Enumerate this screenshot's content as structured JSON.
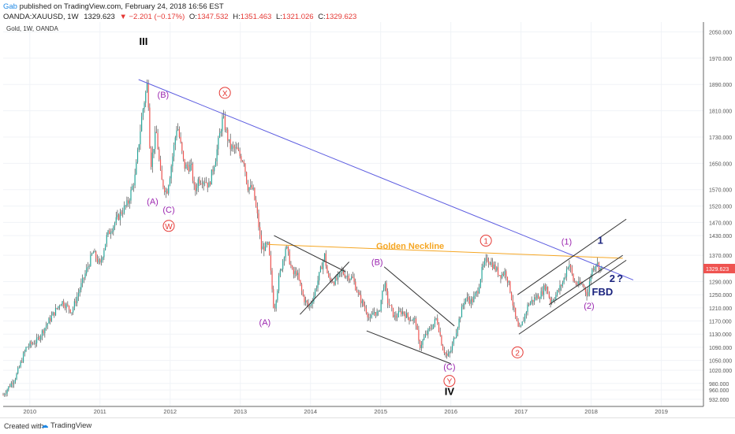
{
  "header": {
    "author": "Gab",
    "published": "published on TradingView.com, February 24, 2018 16:56 EST",
    "symbol": "OANDA:XAUUSD, 1W",
    "last": "1329.623",
    "change": "▼ −2.201 (−0.17%)",
    "o_label": "O:",
    "o": "1347.532",
    "h_label": "H:",
    "h": "1351.463",
    "l_label": "L:",
    "l": "1321.026",
    "c_label": "C:",
    "c": "1329.623"
  },
  "footer": {
    "created_with": "Created with",
    "brand": "TradingView"
  },
  "chart_data": {
    "type": "candlestick",
    "series_label": "Gold, 1W, OANDA",
    "x_ticks": [
      "2010",
      "2011",
      "2012",
      "2013",
      "2014",
      "2015",
      "2016",
      "2017",
      "2018",
      "2019"
    ],
    "y_ticks": [
      2050.0,
      1970.0,
      1890.0,
      1810.0,
      1730.0,
      1650.0,
      1570.0,
      1520.0,
      1470.0,
      1430.0,
      1370.0,
      1290.0,
      1250.0,
      1210.0,
      1170.0,
      1130.0,
      1090.0,
      1050.0,
      1020.0,
      980.0,
      960.0,
      932.0
    ],
    "y_tick_labels": [
      "2050.000",
      "1970.000",
      "1890.000",
      "1810.000",
      "1730.000",
      "1650.000",
      "1570.000",
      "1520.000",
      "1470.000",
      "1430.000",
      "1370.000",
      "1290.000",
      "1250.000",
      "1210.000",
      "1170.000",
      "1130.000",
      "1090.000",
      "1050.000",
      "1020.000",
      "980.000",
      "960.000",
      "932.000"
    ],
    "last_price_label": "1329.623",
    "last_price": 1329.623,
    "x_range": [
      2009.62,
      2019.6
    ],
    "y_range": [
      910,
      2080
    ],
    "price_path": [
      [
        2009.62,
        945
      ],
      [
        2009.8,
        1000
      ],
      [
        2009.95,
        1090
      ],
      [
        2010.1,
        1110
      ],
      [
        2010.3,
        1180
      ],
      [
        2010.45,
        1230
      ],
      [
        2010.6,
        1200
      ],
      [
        2010.75,
        1290
      ],
      [
        2010.9,
        1380
      ],
      [
        2011.0,
        1340
      ],
      [
        2011.1,
        1430
      ],
      [
        2011.3,
        1500
      ],
      [
        2011.4,
        1530
      ],
      [
        2011.5,
        1610
      ],
      [
        2011.6,
        1800
      ],
      [
        2011.68,
        1900
      ],
      [
        2011.72,
        1640
      ],
      [
        2011.8,
        1750
      ],
      [
        2011.87,
        1600
      ],
      [
        2011.95,
        1560
      ],
      [
        2012.0,
        1620
      ],
      [
        2012.1,
        1770
      ],
      [
        2012.2,
        1640
      ],
      [
        2012.3,
        1640
      ],
      [
        2012.35,
        1560
      ],
      [
        2012.4,
        1600
      ],
      [
        2012.5,
        1600
      ],
      [
        2012.55,
        1580
      ],
      [
        2012.65,
        1670
      ],
      [
        2012.75,
        1790
      ],
      [
        2012.85,
        1700
      ],
      [
        2012.95,
        1690
      ],
      [
        2013.0,
        1670
      ],
      [
        2013.05,
        1660
      ],
      [
        2013.1,
        1580
      ],
      [
        2013.18,
        1570
      ],
      [
        2013.25,
        1480
      ],
      [
        2013.3,
        1390
      ],
      [
        2013.4,
        1400
      ],
      [
        2013.48,
        1200
      ],
      [
        2013.55,
        1300
      ],
      [
        2013.65,
        1400
      ],
      [
        2013.75,
        1310
      ],
      [
        2013.8,
        1320
      ],
      [
        2013.9,
        1240
      ],
      [
        2013.98,
        1210
      ],
      [
        2014.05,
        1250
      ],
      [
        2014.15,
        1330
      ],
      [
        2014.2,
        1370
      ],
      [
        2014.25,
        1300
      ],
      [
        2014.35,
        1290
      ],
      [
        2014.45,
        1320
      ],
      [
        2014.5,
        1310
      ],
      [
        2014.6,
        1300
      ],
      [
        2014.7,
        1240
      ],
      [
        2014.8,
        1200
      ],
      [
        2014.85,
        1170
      ],
      [
        2014.9,
        1200
      ],
      [
        2014.97,
        1190
      ],
      [
        2015.05,
        1290
      ],
      [
        2015.1,
        1230
      ],
      [
        2015.2,
        1180
      ],
      [
        2015.3,
        1200
      ],
      [
        2015.4,
        1180
      ],
      [
        2015.5,
        1170
      ],
      [
        2015.55,
        1090
      ],
      [
        2015.65,
        1130
      ],
      [
        2015.75,
        1160
      ],
      [
        2015.8,
        1180
      ],
      [
        2015.88,
        1090
      ],
      [
        2015.95,
        1060
      ],
      [
        2016.0,
        1080
      ],
      [
        2016.1,
        1160
      ],
      [
        2016.2,
        1240
      ],
      [
        2016.3,
        1230
      ],
      [
        2016.38,
        1260
      ],
      [
        2016.45,
        1330
      ],
      [
        2016.52,
        1360
      ],
      [
        2016.6,
        1340
      ],
      [
        2016.7,
        1310
      ],
      [
        2016.78,
        1320
      ],
      [
        2016.85,
        1260
      ],
      [
        2016.92,
        1180
      ],
      [
        2016.97,
        1140
      ],
      [
        2017.0,
        1150
      ],
      [
        2017.1,
        1220
      ],
      [
        2017.2,
        1240
      ],
      [
        2017.28,
        1250
      ],
      [
        2017.35,
        1280
      ],
      [
        2017.42,
        1230
      ],
      [
        2017.5,
        1250
      ],
      [
        2017.6,
        1290
      ],
      [
        2017.68,
        1350
      ],
      [
        2017.75,
        1290
      ],
      [
        2017.82,
        1280
      ],
      [
        2017.88,
        1280
      ],
      [
        2017.95,
        1250
      ],
      [
        2018.0,
        1320
      ],
      [
        2018.07,
        1350
      ],
      [
        2018.13,
        1330
      ],
      [
        2018.15,
        1329.6
      ]
    ],
    "lines": [
      {
        "name": "main-trendline",
        "color": "#5c5ce0",
        "points": [
          [
            2011.55,
            1905
          ],
          [
            2018.6,
            1295
          ]
        ]
      },
      {
        "name": "golden-neckline",
        "color": "#f5a623",
        "points": [
          [
            2013.4,
            1403
          ],
          [
            2018.45,
            1361
          ]
        ]
      },
      {
        "name": "wedge-2013-upper",
        "color": "#333333",
        "points": [
          [
            2013.48,
            1430
          ],
          [
            2014.5,
            1320
          ]
        ]
      },
      {
        "name": "wedge-2013-lower",
        "color": "#333333",
        "points": [
          [
            2013.85,
            1190
          ],
          [
            2014.55,
            1350
          ]
        ]
      },
      {
        "name": "wedge-2015-upper",
        "color": "#333333",
        "points": [
          [
            2015.05,
            1335
          ],
          [
            2016.05,
            1155
          ]
        ]
      },
      {
        "name": "wedge-2015-lower",
        "color": "#333333",
        "points": [
          [
            2014.8,
            1140
          ],
          [
            2016.0,
            1040
          ]
        ]
      },
      {
        "name": "channel-upper",
        "color": "#333333",
        "points": [
          [
            2016.95,
            1250
          ],
          [
            2018.5,
            1480
          ]
        ]
      },
      {
        "name": "channel-middle",
        "color": "#333333",
        "points": [
          [
            2016.97,
            1130
          ],
          [
            2018.5,
            1355
          ]
        ]
      },
      {
        "name": "channel-lower",
        "color": "#333333",
        "points": [
          [
            2017.4,
            1220
          ],
          [
            2018.45,
            1370
          ]
        ]
      }
    ],
    "annotations": [
      {
        "label": "III",
        "x": 2011.62,
        "y": 2010,
        "color": "#000000",
        "style": "bold"
      },
      {
        "label": "(B)",
        "x": 2011.9,
        "y": 1850,
        "color": "#9c27b0"
      },
      {
        "label": "X",
        "x": 2012.78,
        "y": 1855,
        "color": "#e53935",
        "style": "circle"
      },
      {
        "label": "(A)",
        "x": 2011.75,
        "y": 1525,
        "color": "#9c27b0"
      },
      {
        "label": "(C)",
        "x": 2011.98,
        "y": 1500,
        "color": "#9c27b0"
      },
      {
        "label": "W",
        "x": 2011.98,
        "y": 1450,
        "color": "#e53935",
        "style": "circle"
      },
      {
        "label": "Golden Neckline",
        "x": 2015.42,
        "y": 1390,
        "color": "#f5a623",
        "style": "bold"
      },
      {
        "label": "(B)",
        "x": 2014.95,
        "y": 1340,
        "color": "#9c27b0"
      },
      {
        "label": "(A)",
        "x": 2013.35,
        "y": 1157,
        "color": "#9c27b0"
      },
      {
        "label": "1",
        "x": 2016.5,
        "y": 1405,
        "color": "#e53935",
        "style": "circle"
      },
      {
        "label": "(1)",
        "x": 2017.65,
        "y": 1403,
        "color": "#9c27b0"
      },
      {
        "label": "1",
        "x": 2018.13,
        "y": 1405,
        "color": "#1a237e",
        "style": "bold"
      },
      {
        "label": "2",
        "x": 2016.95,
        "y": 1065,
        "color": "#e53935",
        "style": "circle"
      },
      {
        "label": "(C)",
        "x": 2015.98,
        "y": 1022,
        "color": "#9c27b0"
      },
      {
        "label": "Y",
        "x": 2015.98,
        "y": 978,
        "color": "#e53935",
        "style": "circle"
      },
      {
        "label": "IV",
        "x": 2015.98,
        "y": 945,
        "color": "#000000",
        "style": "bold"
      },
      {
        "label": "2",
        "x": 2018.3,
        "y": 1289,
        "color": "#1a237e",
        "style": "bold"
      },
      {
        "label": "?",
        "x": 2018.41,
        "y": 1289,
        "color": "#1a237e",
        "style": "bold"
      },
      {
        "label": "FBD",
        "x": 2018.16,
        "y": 1248,
        "color": "#1a237e",
        "style": "bold"
      },
      {
        "label": "(2)",
        "x": 2017.97,
        "y": 1207,
        "color": "#9c27b0"
      }
    ],
    "colors": {
      "up": "#26a69a",
      "down": "#ef5350",
      "wick": "#333333",
      "price_badge": "#ef5350"
    }
  }
}
